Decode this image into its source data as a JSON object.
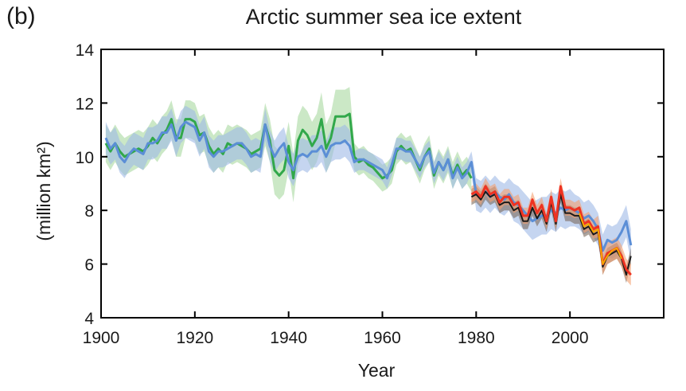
{
  "chart_data": {
    "type": "line",
    "panel_label": "(b)",
    "title": "Arctic summer sea ice extent",
    "xlabel": "Year",
    "ylabel": "(million km²)",
    "xlim": [
      1900,
      2020
    ],
    "ylim": [
      4,
      14
    ],
    "x_ticks": [
      1900,
      1920,
      1940,
      1960,
      1980,
      2000
    ],
    "y_ticks": [
      4,
      6,
      8,
      10,
      12,
      14
    ],
    "grid": false,
    "legend": "none",
    "series": [
      {
        "color": "#31a84a",
        "band_color": "#a8d8a0",
        "x": [
          1901,
          1902,
          1903,
          1904,
          1905,
          1906,
          1907,
          1908,
          1909,
          1910,
          1911,
          1912,
          1913,
          1914,
          1915,
          1916,
          1917,
          1918,
          1919,
          1920,
          1921,
          1922,
          1923,
          1924,
          1925,
          1926,
          1927,
          1928,
          1929,
          1930,
          1931,
          1932,
          1933,
          1934,
          1935,
          1936,
          1937,
          1938,
          1939,
          1940,
          1941,
          1942,
          1943,
          1944,
          1945,
          1946,
          1947,
          1948,
          1949,
          1950,
          1951,
          1952,
          1953,
          1954,
          1955,
          1956,
          1957,
          1958,
          1959,
          1960,
          1961,
          1962,
          1963,
          1964,
          1965,
          1966,
          1967,
          1968,
          1969,
          1970,
          1971,
          1972,
          1973,
          1974,
          1975,
          1976,
          1977,
          1978,
          1979
        ],
        "values": [
          10.5,
          10.2,
          10.5,
          10.2,
          10.0,
          10.1,
          10.2,
          10.3,
          10.2,
          10.4,
          10.7,
          10.5,
          10.8,
          11.0,
          11.4,
          10.7,
          10.7,
          11.4,
          11.4,
          11.3,
          10.8,
          10.9,
          10.4,
          10.1,
          10.3,
          10.1,
          10.5,
          10.4,
          10.5,
          10.4,
          10.3,
          10.1,
          10.2,
          10.3,
          11.2,
          10.6,
          9.5,
          9.3,
          9.5,
          10.4,
          9.2,
          10.6,
          11.0,
          10.8,
          10.4,
          10.7,
          11.4,
          10.3,
          10.7,
          11.5,
          11.5,
          11.5,
          11.6,
          10.0,
          9.8,
          9.9,
          9.7,
          9.6,
          9.4,
          9.2,
          9.3,
          9.5,
          10.2,
          10.4,
          10.2,
          10.3,
          9.9,
          9.5,
          10.0,
          10.3,
          9.3,
          9.8,
          9.5,
          9.9,
          9.3,
          9.7,
          9.3,
          9.5,
          9.2
        ],
        "band": [
          0.7,
          0.7,
          0.7,
          0.7,
          0.7,
          0.7,
          0.7,
          0.7,
          0.7,
          0.7,
          0.7,
          0.7,
          0.7,
          0.7,
          0.7,
          0.7,
          0.7,
          0.7,
          0.7,
          0.7,
          0.7,
          0.7,
          0.7,
          0.7,
          0.7,
          0.7,
          0.7,
          0.7,
          0.7,
          0.7,
          0.7,
          0.7,
          0.7,
          0.7,
          0.8,
          0.8,
          0.9,
          0.9,
          0.9,
          0.9,
          0.9,
          0.9,
          0.9,
          0.9,
          0.9,
          0.9,
          1.0,
          0.9,
          0.9,
          1.0,
          1.0,
          1.0,
          1.0,
          0.5,
          0.5,
          0.5,
          0.5,
          0.5,
          0.5,
          0.5,
          0.5,
          0.5,
          0.5,
          0.5,
          0.5,
          0.5,
          0.5,
          0.5,
          0.5,
          0.5,
          0.5,
          0.5,
          0.5,
          0.5,
          0.5,
          0.5,
          0.5,
          0.5,
          0.5
        ]
      },
      {
        "color": "#5b8ed6",
        "band_color": "#9fb9e6",
        "x": [
          1901,
          1902,
          1903,
          1904,
          1905,
          1906,
          1907,
          1908,
          1909,
          1910,
          1911,
          1912,
          1913,
          1914,
          1915,
          1916,
          1917,
          1918,
          1919,
          1920,
          1921,
          1922,
          1923,
          1924,
          1925,
          1926,
          1927,
          1928,
          1929,
          1930,
          1931,
          1932,
          1933,
          1934,
          1935,
          1936,
          1937,
          1938,
          1939,
          1940,
          1941,
          1942,
          1943,
          1944,
          1945,
          1946,
          1947,
          1948,
          1949,
          1950,
          1951,
          1952,
          1953,
          1954,
          1955,
          1956,
          1957,
          1958,
          1959,
          1960,
          1961,
          1962,
          1963,
          1964,
          1965,
          1966,
          1967,
          1968,
          1969,
          1970,
          1971,
          1972,
          1973,
          1974,
          1975,
          1976,
          1977,
          1978,
          1979,
          1980,
          1981,
          1982,
          1983,
          1984,
          1985,
          1986,
          1987,
          1988,
          1989,
          1990,
          1991,
          1992,
          1993,
          1994,
          1995,
          1996,
          1997,
          1998,
          1999,
          2000,
          2001,
          2002,
          2003,
          2004,
          2005,
          2006,
          2007,
          2008,
          2009,
          2010,
          2011,
          2012,
          2013
        ],
        "values": [
          10.7,
          10.3,
          10.5,
          10.0,
          9.8,
          10.1,
          10.3,
          10.2,
          10.1,
          10.5,
          10.5,
          10.6,
          10.9,
          10.9,
          11.2,
          10.6,
          11.1,
          11.3,
          11.2,
          11.1,
          10.6,
          10.9,
          10.2,
          10.0,
          10.2,
          10.2,
          10.3,
          10.4,
          10.5,
          10.5,
          10.3,
          10.0,
          10.1,
          10.0,
          11.2,
          10.4,
          10.0,
          10.3,
          10.5,
          9.8,
          9.5,
          10.0,
          10.1,
          10.0,
          10.2,
          10.2,
          10.4,
          10.0,
          10.4,
          10.5,
          10.5,
          10.6,
          10.4,
          9.8,
          9.9,
          9.9,
          9.8,
          9.7,
          9.6,
          9.5,
          9.2,
          9.7,
          10.3,
          10.3,
          10.2,
          10.2,
          9.9,
          9.6,
          10.0,
          10.2,
          9.4,
          9.8,
          9.5,
          9.9,
          9.2,
          9.6,
          9.2,
          9.4,
          9.8,
          8.6,
          8.5,
          8.7,
          8.5,
          8.7,
          8.5,
          8.4,
          8.6,
          8.3,
          8.2,
          8.0,
          7.8,
          7.6,
          7.7,
          7.8,
          7.8,
          8.0,
          7.9,
          8.1,
          8.0,
          8.1,
          8.0,
          7.9,
          7.7,
          7.8,
          7.6,
          7.3,
          6.5,
          6.9,
          6.8,
          6.9,
          7.2,
          7.6,
          6.7
        ],
        "band": [
          0.6,
          0.6,
          0.6,
          0.6,
          0.6,
          0.6,
          0.6,
          0.6,
          0.6,
          0.6,
          0.6,
          0.6,
          0.6,
          0.6,
          0.6,
          0.6,
          0.6,
          0.6,
          0.6,
          0.6,
          0.6,
          0.6,
          0.6,
          0.6,
          0.6,
          0.6,
          0.6,
          0.6,
          0.6,
          0.6,
          0.6,
          0.6,
          0.6,
          0.6,
          0.6,
          0.6,
          0.6,
          0.6,
          0.6,
          0.6,
          0.6,
          0.6,
          0.6,
          0.6,
          0.6,
          0.6,
          0.6,
          0.6,
          0.6,
          0.6,
          0.6,
          0.6,
          0.6,
          0.4,
          0.4,
          0.4,
          0.4,
          0.4,
          0.4,
          0.4,
          0.4,
          0.4,
          0.4,
          0.4,
          0.4,
          0.4,
          0.4,
          0.4,
          0.4,
          0.4,
          0.4,
          0.4,
          0.4,
          0.4,
          0.4,
          0.4,
          0.4,
          0.4,
          0.4,
          0.6,
          0.6,
          0.6,
          0.6,
          0.6,
          0.6,
          0.6,
          0.6,
          0.7,
          0.7,
          0.7,
          0.7,
          0.7,
          0.7,
          0.7,
          0.7,
          0.7,
          0.7,
          0.7,
          0.7,
          0.7,
          0.6,
          0.6,
          0.6,
          0.6,
          0.6,
          0.6,
          0.6,
          0.6,
          0.6,
          0.6,
          0.6,
          0.6,
          0.6
        ]
      },
      {
        "color": "#1a1a1a",
        "band_color": "#7c6a5e",
        "x": [
          1979,
          1980,
          1981,
          1982,
          1983,
          1984,
          1985,
          1986,
          1987,
          1988,
          1989,
          1990,
          1991,
          1992,
          1993,
          1994,
          1995,
          1996,
          1997,
          1998,
          1999,
          2000,
          2001,
          2002,
          2003,
          2004,
          2005,
          2006,
          2007,
          2008,
          2009,
          2010,
          2011,
          2012,
          2013
        ],
        "values": [
          8.5,
          8.6,
          8.4,
          8.7,
          8.5,
          8.6,
          8.2,
          8.3,
          8.3,
          8.0,
          8.1,
          7.6,
          7.6,
          8.1,
          7.7,
          8.0,
          7.5,
          8.3,
          7.5,
          8.6,
          7.9,
          7.9,
          7.8,
          7.8,
          7.3,
          7.4,
          7.1,
          7.2,
          5.9,
          6.3,
          6.4,
          6.5,
          6.2,
          5.6,
          6.3
        ],
        "band": [
          0.3,
          0.3,
          0.3,
          0.3,
          0.3,
          0.3,
          0.3,
          0.3,
          0.3,
          0.3,
          0.3,
          0.3,
          0.3,
          0.3,
          0.3,
          0.3,
          0.3,
          0.3,
          0.3,
          0.3,
          0.3,
          0.3,
          0.3,
          0.3,
          0.3,
          0.3,
          0.3,
          0.3,
          0.3,
          0.3,
          0.3,
          0.3,
          0.3,
          0.3,
          0.3
        ]
      },
      {
        "color": "#ee3322",
        "band_color": "#f4a070",
        "x": [
          1979,
          1980,
          1981,
          1982,
          1983,
          1984,
          1985,
          1986,
          1987,
          1988,
          1989,
          1990,
          1991,
          1992,
          1993,
          1994,
          1995,
          1996,
          1997,
          1998,
          1999,
          2000,
          2001,
          2002,
          2003,
          2004,
          2005,
          2006,
          2007,
          2008,
          2009,
          2010,
          2011,
          2012,
          2013
        ],
        "values": [
          8.6,
          8.7,
          8.5,
          8.9,
          8.6,
          8.7,
          8.3,
          8.5,
          8.5,
          8.2,
          8.3,
          7.8,
          7.8,
          8.4,
          7.9,
          8.2,
          7.6,
          8.5,
          7.6,
          8.9,
          8.1,
          8.1,
          8.0,
          8.1,
          7.5,
          7.6,
          7.3,
          7.4,
          6.0,
          6.4,
          6.5,
          6.6,
          6.3,
          5.8,
          5.6
        ],
        "band": [
          0.3,
          0.3,
          0.3,
          0.3,
          0.3,
          0.3,
          0.3,
          0.3,
          0.3,
          0.3,
          0.3,
          0.3,
          0.3,
          0.3,
          0.3,
          0.3,
          0.3,
          0.3,
          0.3,
          0.3,
          0.3,
          0.3,
          0.3,
          0.3,
          0.35,
          0.35,
          0.35,
          0.4,
          0.4,
          0.4,
          0.4,
          0.4,
          0.4,
          0.4,
          0.4
        ]
      },
      {
        "color": "#f5a800",
        "x": [
          2002,
          2003,
          2004,
          2005,
          2006,
          2007,
          2008,
          2009,
          2010,
          2011
        ],
        "values": [
          7.9,
          7.4,
          7.5,
          7.2,
          7.3,
          6.0,
          6.3,
          6.5,
          6.6,
          6.2
        ]
      }
    ]
  }
}
